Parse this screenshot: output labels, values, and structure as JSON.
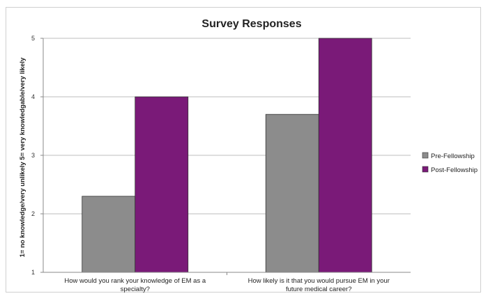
{
  "chart_data": {
    "type": "bar",
    "title": "Survey Responses",
    "xlabel": "",
    "ylabel": "1= no knowledge/very unlikely 5= very knowledgable/very likely",
    "categories": [
      [
        "How would you rank your knowledge of EM as a",
        "specialty?"
      ],
      [
        "How likely is it that you would pursue EM in your",
        "future medical career?"
      ]
    ],
    "series": [
      {
        "name": "Pre-Fellowship",
        "values": [
          2.3,
          3.7
        ],
        "color": "#8c8c8c"
      },
      {
        "name": "Post-Fellowship",
        "values": [
          4.0,
          5.0
        ],
        "color": "#7a1a78"
      }
    ],
    "ylim": [
      1,
      5
    ],
    "yticks": [
      1,
      2,
      3,
      4,
      5
    ],
    "grid": true,
    "legend_position": "right"
  }
}
